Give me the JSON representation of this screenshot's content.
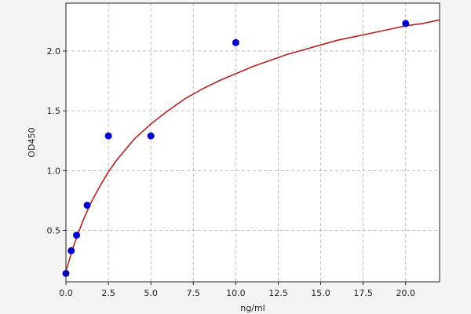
{
  "chart_data": {
    "type": "scatter",
    "xlabel": "ng/ml",
    "ylabel": "OD450",
    "xlim": [
      0,
      22
    ],
    "ylim": [
      0.07,
      2.4
    ],
    "xticks": [
      0.0,
      2.5,
      5.0,
      7.5,
      10.0,
      12.5,
      15.0,
      17.5,
      20.0
    ],
    "xtick_labels": [
      "0.0",
      "2.5",
      "5.0",
      "7.5",
      "10.0",
      "12.5",
      "15.0",
      "17.5",
      "20.0"
    ],
    "yticks": [
      0.5,
      1.0,
      1.5,
      2.0
    ],
    "ytick_labels": [
      "0.5",
      "1.0",
      "1.5",
      "2.0"
    ],
    "grid": true,
    "series": [
      {
        "kind": "points",
        "color": "#0000cc",
        "x": [
          0,
          0.3125,
          0.625,
          1.25,
          2.5,
          5,
          10,
          20
        ],
        "y": [
          0.14,
          0.33,
          0.46,
          0.71,
          1.29,
          1.29,
          2.07,
          2.23
        ]
      },
      {
        "kind": "fitted-curve",
        "color": "#b22222",
        "x": [
          0,
          0.5,
          1,
          1.5,
          2,
          2.5,
          3,
          4,
          5,
          6,
          7,
          8,
          9,
          10,
          11,
          12,
          13,
          14,
          15,
          16,
          17,
          18,
          19,
          20,
          21,
          22
        ],
        "y": [
          0.16,
          0.39,
          0.58,
          0.74,
          0.87,
          0.99,
          1.09,
          1.26,
          1.39,
          1.5,
          1.6,
          1.68,
          1.75,
          1.81,
          1.87,
          1.92,
          1.97,
          2.01,
          2.05,
          2.09,
          2.12,
          2.15,
          2.18,
          2.21,
          2.23,
          2.26
        ]
      }
    ]
  }
}
